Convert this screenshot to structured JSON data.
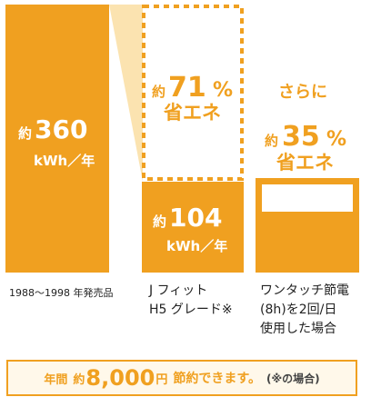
{
  "colors": {
    "accent": "#f0a020",
    "connector": "#fbe3b0",
    "footer_bg": "#fff8ea"
  },
  "chart_data": {
    "type": "bar",
    "categories": [
      "1988～1998 年発売品",
      "J フィット H5 グレード※",
      "ワンタッチ節電 (8h)を2回/日 使用した場合"
    ],
    "values": [
      360,
      104,
      67
    ],
    "unit": "kWh／年",
    "bar1": {
      "prefix": "約",
      "value": "360",
      "unit": "kWh／年"
    },
    "bar2": {
      "prefix": "約",
      "value": "104",
      "unit": "kWh／年"
    },
    "saving1": {
      "prefix": "約",
      "value": "71",
      "pct": "%",
      "label": "省エネ"
    },
    "saving2": {
      "lead": "さらに",
      "prefix": "約",
      "value": "35",
      "pct": "%",
      "label": "省エネ"
    },
    "xlabels": {
      "c1": "1988～1998 年発売品",
      "c2a": "J フィット",
      "c2b": "H5 グレード※",
      "c3a": "ワンタッチ節電",
      "c3b": "(8h)を2回/日",
      "c3c": "使用した場合"
    }
  },
  "footer": {
    "pre": "年間",
    "approx": "約",
    "amount": "8,000",
    "yen": "円",
    "text": "節約できます。",
    "note": "(※の場合)"
  }
}
